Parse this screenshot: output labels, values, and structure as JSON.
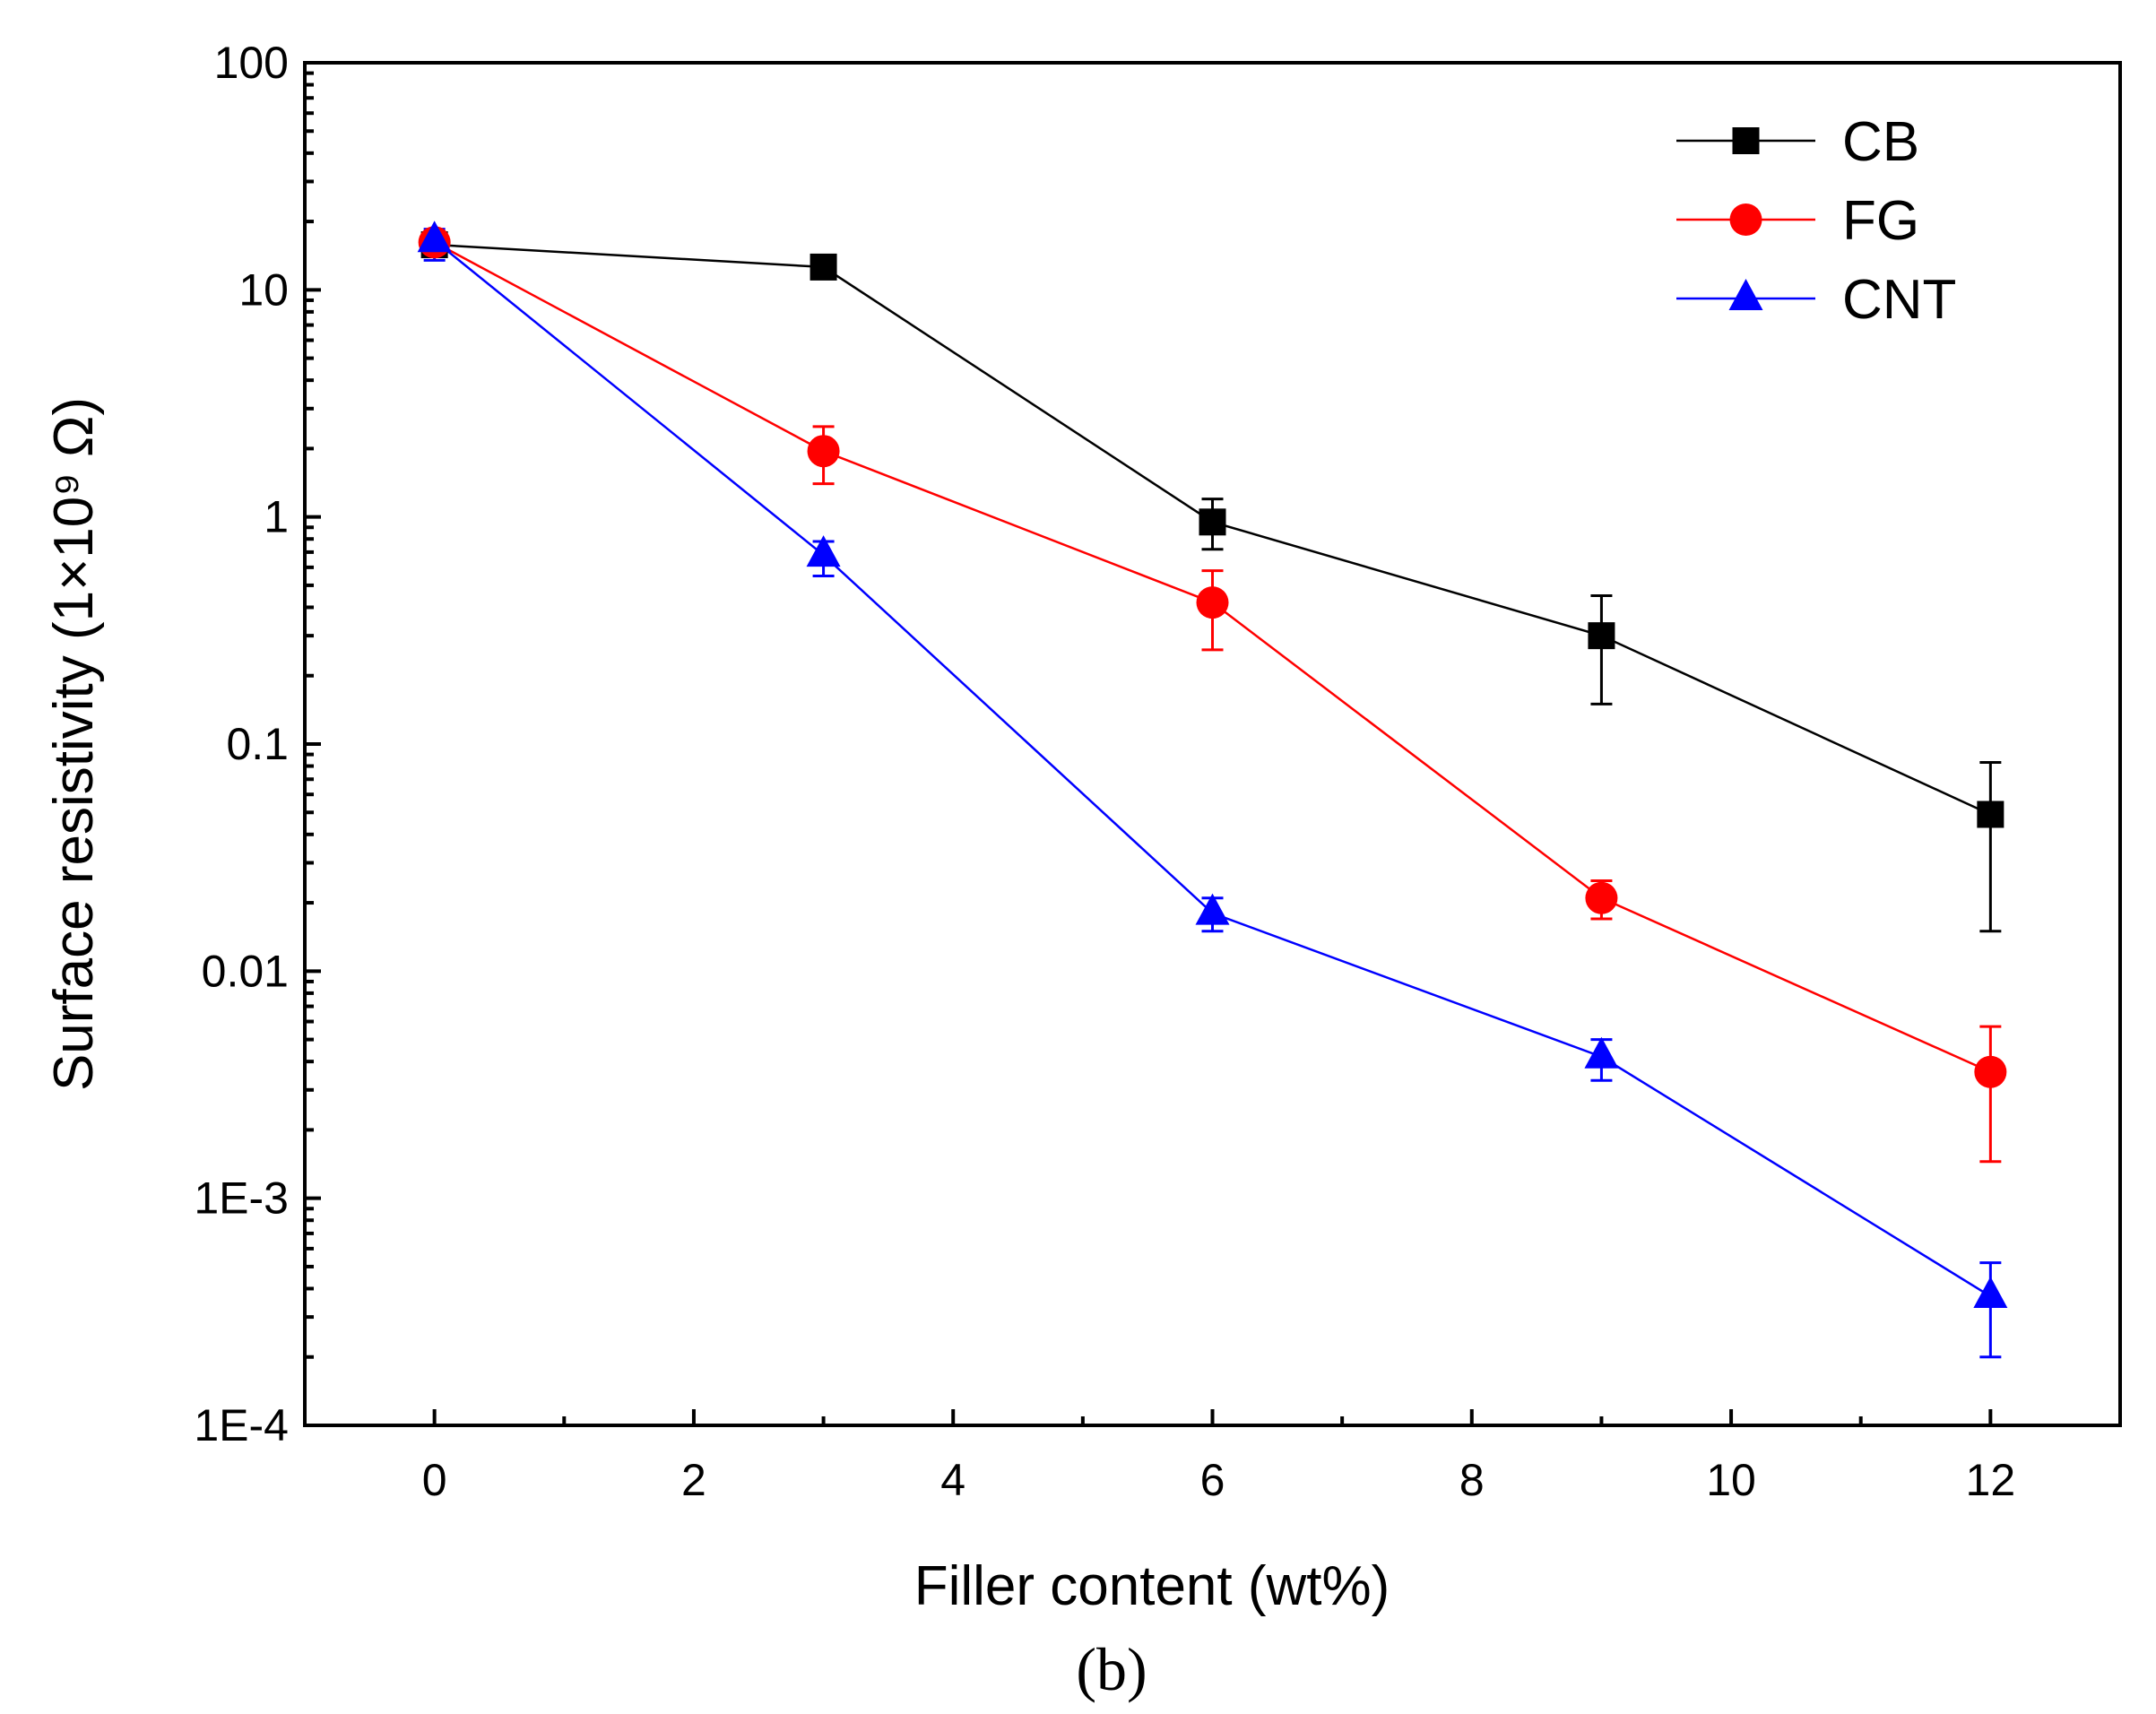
{
  "chart_data": {
    "type": "line",
    "title": "",
    "xlabel": "Filler content (wt%)",
    "ylabel": "Surface resistivity (1×10⁹ Ω)",
    "panel_label": "(b)",
    "xlim": [
      -1,
      13
    ],
    "ylim": [
      0.0001,
      100
    ],
    "yscale": "log",
    "grid": false,
    "legend_position": "top-right",
    "x": [
      0,
      3,
      6,
      9,
      12
    ],
    "x_ticks": [
      0,
      2,
      4,
      6,
      8,
      10,
      12
    ],
    "x_tick_labels": [
      "0",
      "2",
      "4",
      "6",
      "8",
      "10",
      "12"
    ],
    "y_ticks": [
      100,
      10,
      1,
      0.1,
      0.01,
      0.001,
      0.0001
    ],
    "y_tick_labels": [
      "100",
      "10",
      "1",
      "0.1",
      "0.01",
      "1E-3",
      "1E-4"
    ],
    "series": [
      {
        "name": "CB",
        "color": "#000000",
        "marker": "square",
        "values": [
          15.8,
          12.6,
          0.95,
          0.3,
          0.049
        ],
        "error_low": [
          14.0,
          11.5,
          0.72,
          0.15,
          0.015
        ],
        "error_high": [
          17.5,
          13.8,
          1.2,
          0.45,
          0.083
        ]
      },
      {
        "name": "FG",
        "color": "#ff0000",
        "marker": "circle",
        "values": [
          16.2,
          1.95,
          0.42,
          0.021,
          0.0036
        ],
        "error_low": [
          14.5,
          1.4,
          0.26,
          0.017,
          0.00145
        ],
        "error_high": [
          17.8,
          2.5,
          0.58,
          0.025,
          0.0057
        ]
      },
      {
        "name": "CNT",
        "color": "#0000ff",
        "marker": "triangle",
        "values": [
          16.5,
          0.68,
          0.018,
          0.0042,
          0.00037
        ],
        "error_low": [
          13.5,
          0.55,
          0.015,
          0.0033,
          0.0002
        ],
        "error_high": [
          18.5,
          0.78,
          0.021,
          0.005,
          0.00052
        ]
      }
    ]
  }
}
